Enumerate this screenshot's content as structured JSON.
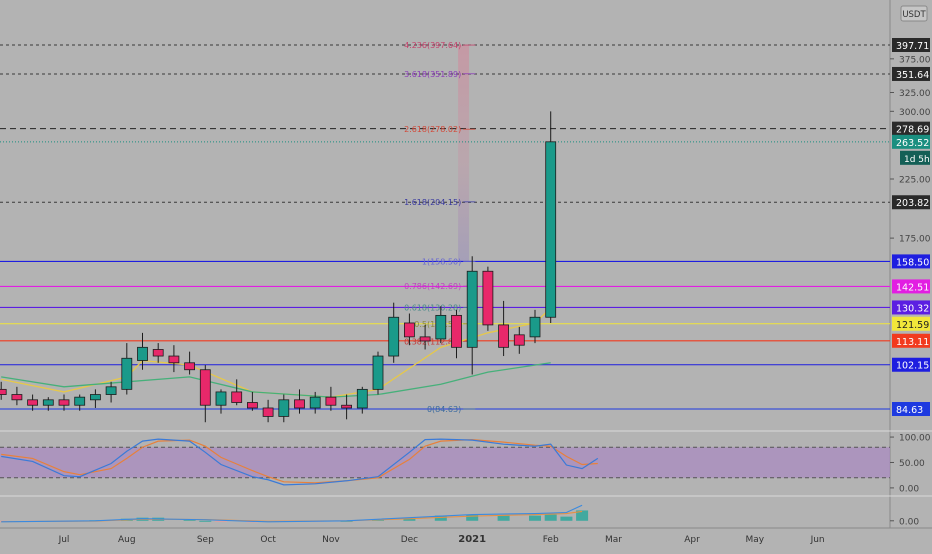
{
  "chart_data": {
    "type": "candlestick",
    "currency_label": "USDT",
    "countdown_label": "1d 5h",
    "price_axis": {
      "ticks": [
        "375.00",
        "325.00",
        "300.00",
        "225.00",
        "175.00"
      ],
      "tick_values": [
        375,
        325,
        300,
        225,
        175
      ],
      "ylim": [
        60,
        420
      ]
    },
    "time_axis": {
      "labels": [
        "Jul",
        "Aug",
        "Sep",
        "Oct",
        "Nov",
        "Dec",
        "2021",
        "Feb",
        "Mar",
        "Apr",
        "May",
        "Jun"
      ],
      "label_week_index": [
        0,
        4,
        9,
        13,
        17,
        22,
        26,
        31,
        35,
        40,
        44,
        48
      ],
      "start_week_index": -4,
      "end_week_index": 51
    },
    "price_levels": [
      {
        "value": 397.71,
        "label": "397.71",
        "color": "#3a3a3a",
        "style": "dashed"
      },
      {
        "value": 351.64,
        "label": "351.64",
        "color": "#3a3a3a",
        "style": "dashed"
      },
      {
        "value": 278.69,
        "label": "278.69",
        "color": "#222222",
        "style": "dashed"
      },
      {
        "value": 203.82,
        "label": "203.82",
        "color": "#3a3a3a",
        "style": "dashed"
      },
      {
        "value": 158.5,
        "label": "158.50",
        "color": "#1e1ee0",
        "style": "solid"
      },
      {
        "value": 142.51,
        "label": "142.51",
        "color": "#e21ee2",
        "style": "solid"
      },
      {
        "value": 130.32,
        "label": "130.32",
        "color": "#5b1ee2",
        "style": "solid"
      },
      {
        "value": 121.59,
        "label": "121.59",
        "color": "#f2e63a",
        "style": "solid"
      },
      {
        "value": 113.11,
        "label": "113.11",
        "color": "#f23a1e",
        "style": "solid"
      },
      {
        "value": 102.15,
        "label": "102.15",
        "color": "#1e1ee0",
        "style": "solid"
      },
      {
        "value": 84.63,
        "label": "84.63",
        "color": "#1e3ae0",
        "style": "solid"
      }
    ],
    "last_price": {
      "value": 263.52,
      "label": "263.52",
      "color": "#1a8f80"
    },
    "fib_labels": [
      {
        "text": "4.236(397.64)",
        "value": 397.64,
        "color": "#c4406a"
      },
      {
        "text": "3.618(351.89)",
        "value": 351.89,
        "color": "#8a3ab8"
      },
      {
        "text": "2.618(278.02)",
        "value": 278.02,
        "color": "#d24a3a"
      },
      {
        "text": "1.618(204.15)",
        "value": 204.15,
        "color": "#3a3aa0"
      },
      {
        "text": "1(158.50)",
        "value": 158.5,
        "color": "#6a6ad0"
      },
      {
        "text": "0.786(142.69)",
        "value": 142.69,
        "color": "#c040c0"
      },
      {
        "text": "0.618(130.28)",
        "value": 130.28,
        "color": "#4a8a8a"
      },
      {
        "text": "0.5(121.57)",
        "value": 121.57,
        "color": "#8a8a3a"
      },
      {
        "text": "0.382(112.85)",
        "value": 112.85,
        "color": "#c03a3a"
      },
      {
        "text": "0(84.63)",
        "value": 84.63,
        "color": "#3a6aa0"
      }
    ],
    "candles": [
      {
        "w": -4,
        "o": 92,
        "h": 95,
        "l": 88,
        "c": 90
      },
      {
        "w": -3,
        "o": 90,
        "h": 93,
        "l": 86,
        "c": 88
      },
      {
        "w": -2,
        "o": 88,
        "h": 90,
        "l": 84,
        "c": 86
      },
      {
        "w": -1,
        "o": 86,
        "h": 89,
        "l": 84,
        "c": 88
      },
      {
        "w": 0,
        "o": 88,
        "h": 90,
        "l": 84,
        "c": 86
      },
      {
        "w": 1,
        "o": 86,
        "h": 90,
        "l": 84,
        "c": 89
      },
      {
        "w": 2,
        "o": 88,
        "h": 92,
        "l": 85,
        "c": 90
      },
      {
        "w": 3,
        "o": 90,
        "h": 95,
        "l": 87,
        "c": 93
      },
      {
        "w": 4,
        "o": 92,
        "h": 112,
        "l": 90,
        "c": 105
      },
      {
        "w": 5,
        "o": 104,
        "h": 117,
        "l": 100,
        "c": 110
      },
      {
        "w": 6,
        "o": 109,
        "h": 112,
        "l": 103,
        "c": 106
      },
      {
        "w": 7,
        "o": 106,
        "h": 111,
        "l": 99,
        "c": 103
      },
      {
        "w": 8,
        "o": 103,
        "h": 108,
        "l": 98,
        "c": 100
      },
      {
        "w": 9,
        "o": 100,
        "h": 102,
        "l": 80,
        "c": 86
      },
      {
        "w": 10,
        "o": 86,
        "h": 92,
        "l": 83,
        "c": 91
      },
      {
        "w": 11,
        "o": 91,
        "h": 96,
        "l": 86,
        "c": 87
      },
      {
        "w": 12,
        "o": 87,
        "h": 91,
        "l": 84,
        "c": 85
      },
      {
        "w": 13,
        "o": 85,
        "h": 88,
        "l": 80,
        "c": 82
      },
      {
        "w": 14,
        "o": 82,
        "h": 90,
        "l": 80,
        "c": 88
      },
      {
        "w": 15,
        "o": 88,
        "h": 92,
        "l": 83,
        "c": 85
      },
      {
        "w": 16,
        "o": 85,
        "h": 91,
        "l": 83,
        "c": 89
      },
      {
        "w": 17,
        "o": 89,
        "h": 93,
        "l": 84,
        "c": 86
      },
      {
        "w": 18,
        "o": 86,
        "h": 90,
        "l": 81,
        "c": 85
      },
      {
        "w": 19,
        "o": 85,
        "h": 93,
        "l": 83,
        "c": 92
      },
      {
        "w": 20,
        "o": 92,
        "h": 108,
        "l": 90,
        "c": 106
      },
      {
        "w": 21,
        "o": 106,
        "h": 133,
        "l": 103,
        "c": 125
      },
      {
        "w": 22,
        "o": 122,
        "h": 127,
        "l": 111,
        "c": 115
      },
      {
        "w": 23,
        "o": 115,
        "h": 121,
        "l": 109,
        "c": 113
      },
      {
        "w": 24,
        "o": 114,
        "h": 131,
        "l": 112,
        "c": 126
      },
      {
        "w": 25,
        "o": 126,
        "h": 129,
        "l": 105,
        "c": 110
      },
      {
        "w": 26,
        "o": 110,
        "h": 162,
        "l": 98,
        "c": 152
      },
      {
        "w": 27,
        "o": 152,
        "h": 155,
        "l": 118,
        "c": 121
      },
      {
        "w": 28,
        "o": 121,
        "h": 134,
        "l": 106,
        "c": 110
      },
      {
        "w": 29,
        "o": 116,
        "h": 120,
        "l": 107,
        "c": 111
      },
      {
        "w": 30,
        "o": 115,
        "h": 129,
        "l": 112,
        "c": 125
      },
      {
        "w": 31,
        "o": 125,
        "h": 300,
        "l": 122,
        "c": 263.52
      }
    ],
    "overlay_lines": [
      {
        "name": "",
        "color": "#e6c84a",
        "values": [
          [
            -4,
            96
          ],
          [
            0,
            91
          ],
          [
            4,
            97
          ],
          [
            5,
            104
          ],
          [
            8,
            102
          ],
          [
            12,
            91
          ],
          [
            17,
            89
          ],
          [
            20,
            92
          ],
          [
            24,
            110
          ],
          [
            27,
            117
          ],
          [
            30,
            122
          ],
          [
            31,
            130
          ]
        ]
      },
      {
        "name": "",
        "color": "#46b07a",
        "values": [
          [
            -4,
            97
          ],
          [
            0,
            93
          ],
          [
            4,
            95
          ],
          [
            8,
            97
          ],
          [
            12,
            91
          ],
          [
            17,
            89
          ],
          [
            20,
            90
          ],
          [
            24,
            94
          ],
          [
            27,
            99
          ],
          [
            31,
            103
          ]
        ]
      }
    ],
    "stoch_rsi": {
      "ticks": [
        "100.00",
        "50.00",
        "0.00"
      ],
      "tick_values": [
        100,
        50,
        0
      ],
      "ylim": [
        -12,
        108
      ],
      "bands": [
        80,
        20
      ],
      "k": [
        [
          -4,
          62
        ],
        [
          -2,
          52
        ],
        [
          0,
          24
        ],
        [
          1,
          22
        ],
        [
          3,
          48
        ],
        [
          4,
          72
        ],
        [
          5,
          92
        ],
        [
          6,
          96
        ],
        [
          8,
          92
        ],
        [
          9,
          70
        ],
        [
          10,
          46
        ],
        [
          12,
          22
        ],
        [
          13,
          16
        ],
        [
          14,
          6
        ],
        [
          16,
          8
        ],
        [
          18,
          14
        ],
        [
          20,
          22
        ],
        [
          22,
          70
        ],
        [
          23,
          95
        ],
        [
          24,
          96
        ],
        [
          26,
          94
        ],
        [
          28,
          86
        ],
        [
          30,
          82
        ],
        [
          31,
          86
        ],
        [
          32,
          45
        ],
        [
          33,
          38
        ],
        [
          34,
          58
        ]
      ],
      "d": [
        [
          -4,
          66
        ],
        [
          -2,
          58
        ],
        [
          0,
          32
        ],
        [
          1,
          26
        ],
        [
          3,
          38
        ],
        [
          4,
          58
        ],
        [
          5,
          80
        ],
        [
          6,
          92
        ],
        [
          8,
          94
        ],
        [
          9,
          82
        ],
        [
          10,
          60
        ],
        [
          12,
          34
        ],
        [
          13,
          22
        ],
        [
          14,
          12
        ],
        [
          16,
          10
        ],
        [
          18,
          14
        ],
        [
          20,
          20
        ],
        [
          22,
          56
        ],
        [
          23,
          82
        ],
        [
          24,
          92
        ],
        [
          26,
          95
        ],
        [
          28,
          90
        ],
        [
          30,
          84
        ],
        [
          31,
          82
        ],
        [
          32,
          62
        ],
        [
          33,
          46
        ],
        [
          34,
          48
        ]
      ]
    },
    "macd": {
      "ticks": [
        "0.00"
      ],
      "tick_values": [
        0
      ],
      "ylim": [
        -6,
        22
      ],
      "hist": [
        [
          -4,
          -1
        ],
        [
          -2,
          -0.8
        ],
        [
          0,
          -1
        ],
        [
          2,
          0.5
        ],
        [
          4,
          2
        ],
        [
          5,
          3
        ],
        [
          6,
          3
        ],
        [
          8,
          1.5
        ],
        [
          9,
          0
        ],
        [
          10,
          -1
        ],
        [
          12,
          -1.5
        ],
        [
          14,
          -1
        ],
        [
          16,
          -0.5
        ],
        [
          18,
          0
        ],
        [
          20,
          1
        ],
        [
          22,
          3
        ],
        [
          24,
          5
        ],
        [
          26,
          6
        ],
        [
          28,
          5
        ],
        [
          30,
          5
        ],
        [
          31,
          6
        ],
        [
          32,
          4
        ],
        [
          33,
          10
        ]
      ],
      "macd_line": [
        [
          -4,
          -1
        ],
        [
          2,
          0
        ],
        [
          5,
          2
        ],
        [
          9,
          1
        ],
        [
          13,
          -1
        ],
        [
          18,
          0
        ],
        [
          22,
          3
        ],
        [
          26,
          6
        ],
        [
          30,
          7
        ],
        [
          32,
          8
        ],
        [
          33,
          15
        ]
      ],
      "signal_line": [
        [
          -4,
          -0.8
        ],
        [
          2,
          -0.3
        ],
        [
          5,
          1.5
        ],
        [
          9,
          1.2
        ],
        [
          13,
          -0.5
        ],
        [
          18,
          0
        ],
        [
          22,
          2
        ],
        [
          26,
          4.5
        ],
        [
          30,
          6
        ],
        [
          32,
          7
        ],
        [
          33,
          9
        ]
      ]
    },
    "colors": {
      "up": "#1a9a8a",
      "down": "#e8286a",
      "background": "#b3b3b3",
      "stoch_fill": "#a98bc0",
      "stoch_k": "#3a7ad8",
      "stoch_d": "#e8803a",
      "macd_line": "#3a8ae0",
      "signal_line": "#e89040"
    }
  }
}
